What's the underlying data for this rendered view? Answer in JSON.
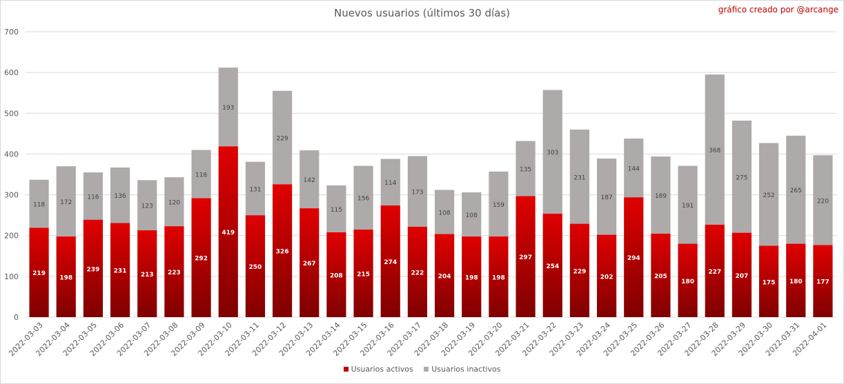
{
  "title": "Nuevos usuarios (últimos 30 días)",
  "credit": "gráfico creado por @arcange",
  "colors": {
    "active_top": "#e00000",
    "active_bottom": "#7f0000",
    "inactive": "#aeaaaa",
    "grid": "#d9d9d9",
    "axis_text": "#595959"
  },
  "chart_data": {
    "type": "bar",
    "stacked": true,
    "title": "Nuevos usuarios (últimos 30 días)",
    "xlabel": "",
    "ylabel": "",
    "ylim": [
      0,
      700
    ],
    "yticks": [
      0,
      100,
      200,
      300,
      400,
      500,
      600,
      700
    ],
    "grid": true,
    "legend_position": "bottom",
    "categories": [
      "2022-03-03",
      "2022-03-04",
      "2022-03-05",
      "2022-03-06",
      "2022-03-07",
      "2022-03-08",
      "2022-03-09",
      "2022-03-10",
      "2022-03-11",
      "2022-03-12",
      "2022-03-13",
      "2022-03-14",
      "2022-03-15",
      "2022-03-16",
      "2022-03-17",
      "2022-03-18",
      "2022-03-19",
      "2022-03-20",
      "2022-03-21",
      "2022-03-22",
      "2022-03-23",
      "2022-03-24",
      "2022-03-25",
      "2022-03-26",
      "2022-03-27",
      "2022-03-28",
      "2022-03-29",
      "2022-03-30",
      "2022-03-31",
      "2022-04-01"
    ],
    "series": [
      {
        "name": "Usuarios activos",
        "values": [
          219,
          198,
          239,
          231,
          213,
          223,
          292,
          419,
          250,
          326,
          267,
          208,
          215,
          274,
          222,
          204,
          198,
          198,
          297,
          254,
          229,
          202,
          294,
          205,
          180,
          227,
          207,
          175,
          180,
          177
        ]
      },
      {
        "name": "Usuarios inactivos",
        "values": [
          118,
          172,
          116,
          136,
          123,
          120,
          118,
          193,
          131,
          229,
          142,
          115,
          156,
          114,
          173,
          108,
          108,
          159,
          135,
          303,
          231,
          187,
          144,
          189,
          191,
          368,
          275,
          252,
          265,
          220
        ]
      }
    ]
  }
}
